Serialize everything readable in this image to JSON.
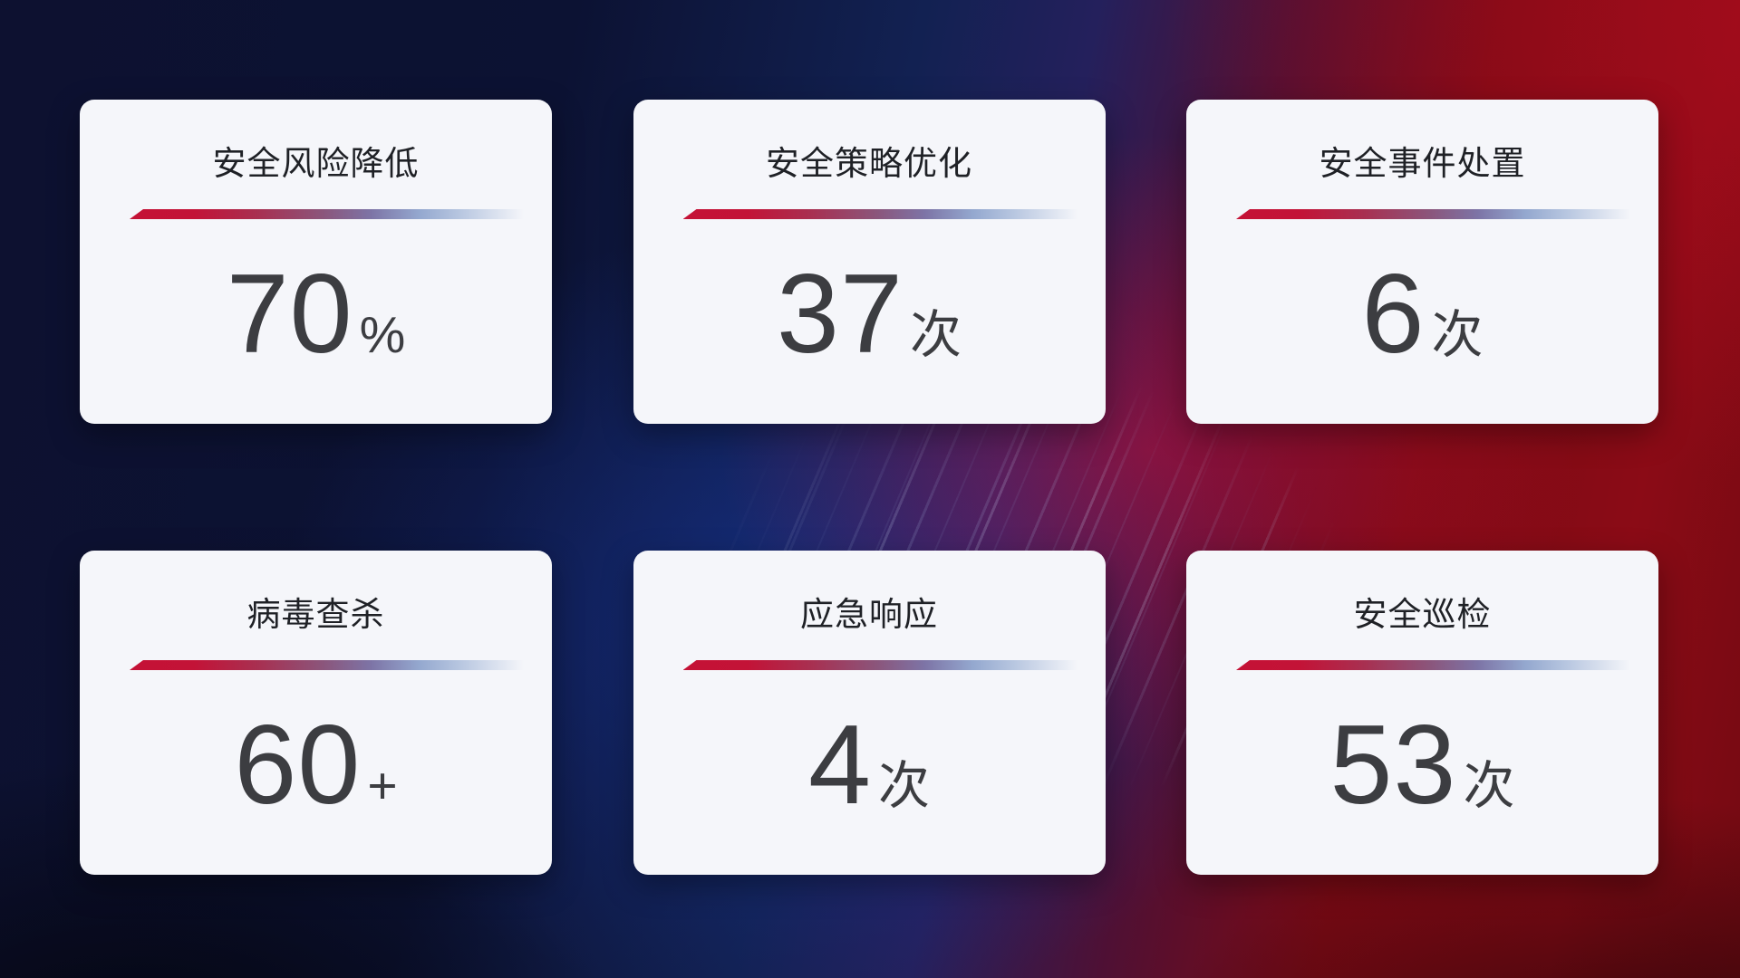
{
  "dashboard": {
    "description": "security-operations-stat-cards",
    "cards": [
      {
        "title": "安全风险降低",
        "value": "70",
        "unit": "%"
      },
      {
        "title": "安全策略优化",
        "value": "37",
        "unit": "次"
      },
      {
        "title": "安全事件处置",
        "value": "6",
        "unit": "次"
      },
      {
        "title": "病毒查杀",
        "value": "60",
        "unit": "+"
      },
      {
        "title": "应急响应",
        "value": "4",
        "unit": "次"
      },
      {
        "title": "安全巡检",
        "value": "53",
        "unit": "次"
      }
    ],
    "colors": {
      "card_background": "#f5f6fa",
      "title_text": "#1f2126",
      "value_text": "#3c3d41",
      "divider_start_red": "#c41236",
      "divider_end_blue": "#b7c6e0",
      "background_navy": "#0c1233",
      "background_blue_glow": "#183aa8",
      "background_red": "#8b0b16",
      "background_crimson_glow": "#cd0e38"
    }
  }
}
